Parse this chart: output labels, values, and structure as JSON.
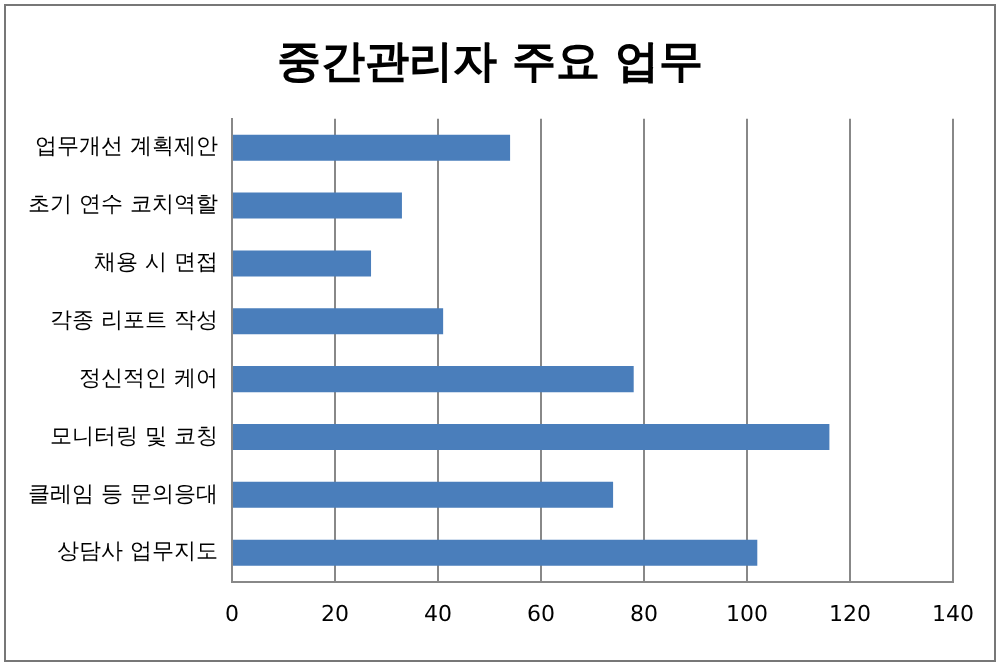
{
  "chart_data": {
    "type": "bar",
    "orientation": "horizontal",
    "title": "중간관리자 주요 업무",
    "categories": [
      "업무개선 계획제안",
      "초기 연수 코치역할",
      "채용 시 면접",
      "각종 리포트 작성",
      "정신적인 케어",
      "모니터링 및 코칭",
      "클레임 등 문의응대",
      "상담사 업무지도"
    ],
    "values": [
      54,
      33,
      27,
      41,
      78,
      116,
      74,
      102
    ],
    "color": "#4a7ebb",
    "xlim": [
      0,
      140
    ],
    "xticks": [
      0,
      20,
      40,
      60,
      80,
      100,
      120,
      140
    ],
    "grid": "x",
    "legend": false
  }
}
